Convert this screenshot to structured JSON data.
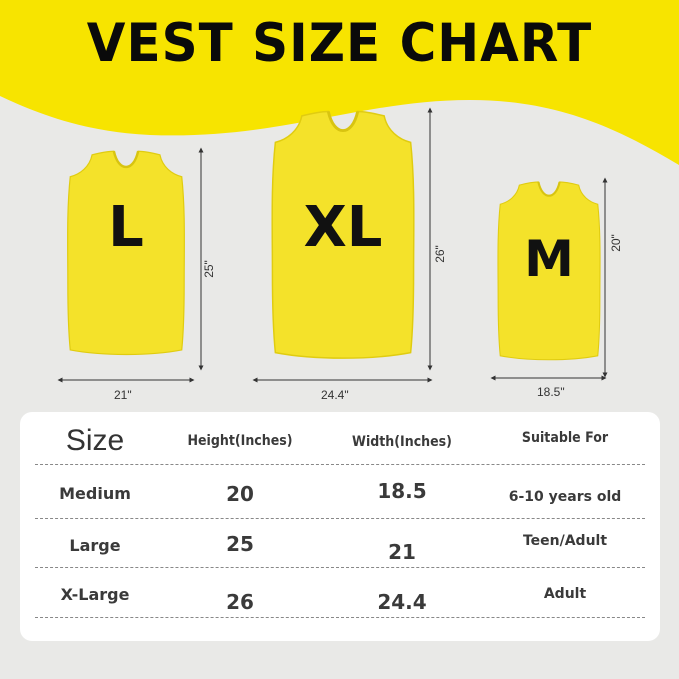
{
  "title": "VEST SIZE CHART",
  "colors": {
    "banner": "#f7e400",
    "vest": "#f4e22a",
    "background": "#e9e9e7"
  },
  "vests": [
    {
      "letter": "L",
      "height": "25\"",
      "width": "21\""
    },
    {
      "letter": "XL",
      "height": "26\"",
      "width": "24.4\""
    },
    {
      "letter": "M",
      "height": "20\"",
      "width": "18.5\""
    }
  ],
  "table": {
    "headers": [
      "Size",
      "Height(Inches)",
      "Width(Inches)",
      "Suitable For"
    ],
    "rows": [
      [
        "Medium",
        "20",
        "18.5",
        "6-10 years old"
      ],
      [
        "Large",
        "25",
        "21",
        "Teen/Adult"
      ],
      [
        "X-Large",
        "26",
        "24.4",
        "Adult"
      ]
    ]
  }
}
